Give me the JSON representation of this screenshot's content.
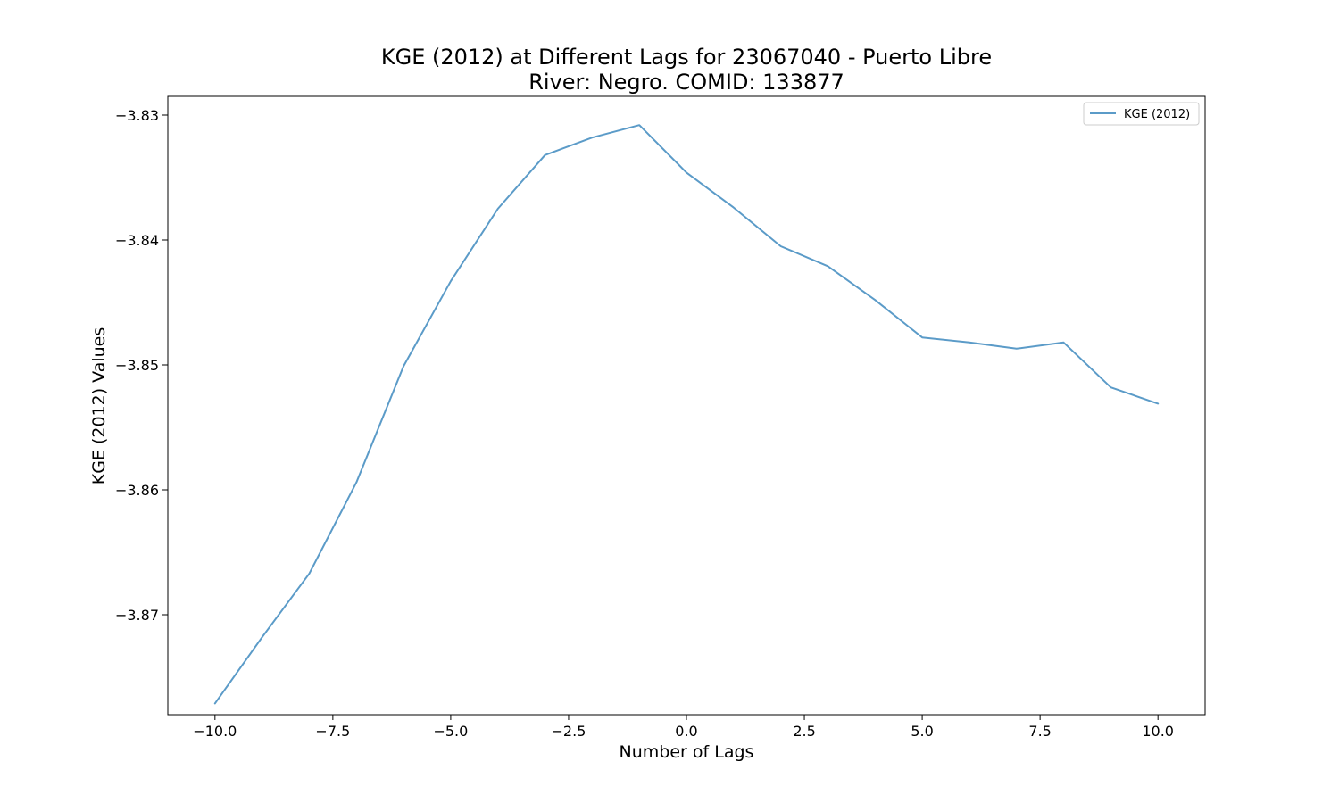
{
  "chart_data": {
    "type": "line",
    "title_line1": "KGE (2012) at Different Lags for 23067040 - Puerto Libre",
    "title_line2": "River: Negro. COMID: 133877",
    "xlabel": "Number of Lags",
    "ylabel": "KGE (2012) Values",
    "xlim": [
      -11,
      11
    ],
    "ylim": [
      -3.878,
      -3.8285
    ],
    "x_ticks": [
      -10.0,
      -7.5,
      -5.0,
      -2.5,
      0.0,
      2.5,
      5.0,
      7.5,
      10.0
    ],
    "x_tick_labels": [
      "−10.0",
      "−7.5",
      "−5.0",
      "−2.5",
      "0.0",
      "2.5",
      "5.0",
      "7.5",
      "10.0"
    ],
    "y_ticks": [
      -3.87,
      -3.86,
      -3.85,
      -3.84,
      -3.83
    ],
    "y_tick_labels": [
      "−3.87",
      "−3.86",
      "−3.85",
      "−3.84",
      "−3.83"
    ],
    "grid": false,
    "legend_position": "top-right",
    "series": [
      {
        "name": "KGE (2012)",
        "color": "#5b9bc8",
        "x": [
          -10,
          -9,
          -8,
          -7,
          -6,
          -5,
          -4,
          -3,
          -2,
          -1,
          0,
          1,
          2,
          3,
          4,
          5,
          6,
          7,
          8,
          9,
          10
        ],
        "values": [
          -3.8771,
          -3.8718,
          -3.8667,
          -3.8594,
          -3.8501,
          -3.8433,
          -3.8375,
          -3.8332,
          -3.8318,
          -3.8308,
          -3.8346,
          -3.8374,
          -3.8405,
          -3.8421,
          -3.8448,
          -3.8478,
          -3.8482,
          -3.8487,
          -3.8482,
          -3.8518,
          -3.8531
        ]
      }
    ]
  }
}
